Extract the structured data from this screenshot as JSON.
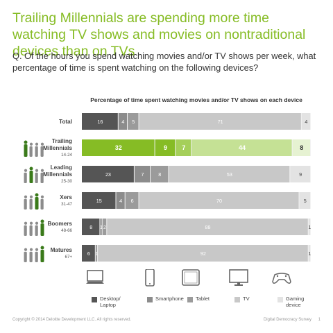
{
  "headline": "Trailing Millennials are spending more time watching TV shows and movies on nontraditional devices than on TVs",
  "question": "Q. Of the hours you spend watching movies and/or TV shows per week, what percentage of time is spent watching on the following devices?",
  "footer": {
    "copyright": "Copyright © 2014 Deloitte Development LLC. All rights reserved.",
    "source": "Digital Democracy Survey",
    "page_number": "1"
  },
  "colors": {
    "accent_green": "#86bc25",
    "dark_gray": "#555555",
    "gray": "#8c8c8c",
    "mid_gray": "#9b9b9b",
    "light_gray": "#c8c8c8",
    "very_light_gray": "#e3e3e3",
    "row_background": "#f2f2f2"
  },
  "legend": [
    {
      "label": "Desktop/\nLaptop",
      "icon": "desktop-icon",
      "color": "#555555"
    },
    {
      "label": "Smartphone",
      "icon": "smartphone-icon",
      "color": "#8c8c8c"
    },
    {
      "label": "Tablet",
      "icon": "tablet-icon",
      "color": "#9b9b9b"
    },
    {
      "label": "TV",
      "icon": "tv-icon",
      "color": "#c8c8c8"
    },
    {
      "label": "Gaming\ndevice",
      "icon": "gaming-controller-icon",
      "color": "#e3e3e3"
    }
  ],
  "chart_data": {
    "type": "bar",
    "orientation": "horizontal",
    "stacked": true,
    "title": "Percentage of time spent watching movies and/or TV shows on each device",
    "unit": "%",
    "categories": [
      {
        "label": "Total",
        "sublabel": ""
      },
      {
        "label": "Trailing\nMillennials",
        "sublabel": "14-24"
      },
      {
        "label": "Leading\nMillennials",
        "sublabel": "25-30"
      },
      {
        "label": "Xers",
        "sublabel": "31-47"
      },
      {
        "label": "Boomers",
        "sublabel": "48-66"
      },
      {
        "label": "Matures",
        "sublabel": "67+"
      }
    ],
    "series": [
      {
        "name": "Desktop/Laptop",
        "values": [
          16,
          32,
          23,
          15,
          8,
          6
        ]
      },
      {
        "name": "Smartphone",
        "values": [
          4,
          9,
          7,
          4,
          1,
          0
        ]
      },
      {
        "name": "Tablet",
        "values": [
          5,
          7,
          8,
          6,
          2,
          1
        ]
      },
      {
        "name": "TV",
        "values": [
          71,
          44,
          53,
          70,
          88,
          92
        ]
      },
      {
        "name": "Gaming device",
        "values": [
          4,
          8,
          9,
          5,
          1,
          1
        ]
      }
    ],
    "highlight_category": "Trailing\nMillennials",
    "xlim": [
      0,
      100
    ]
  }
}
